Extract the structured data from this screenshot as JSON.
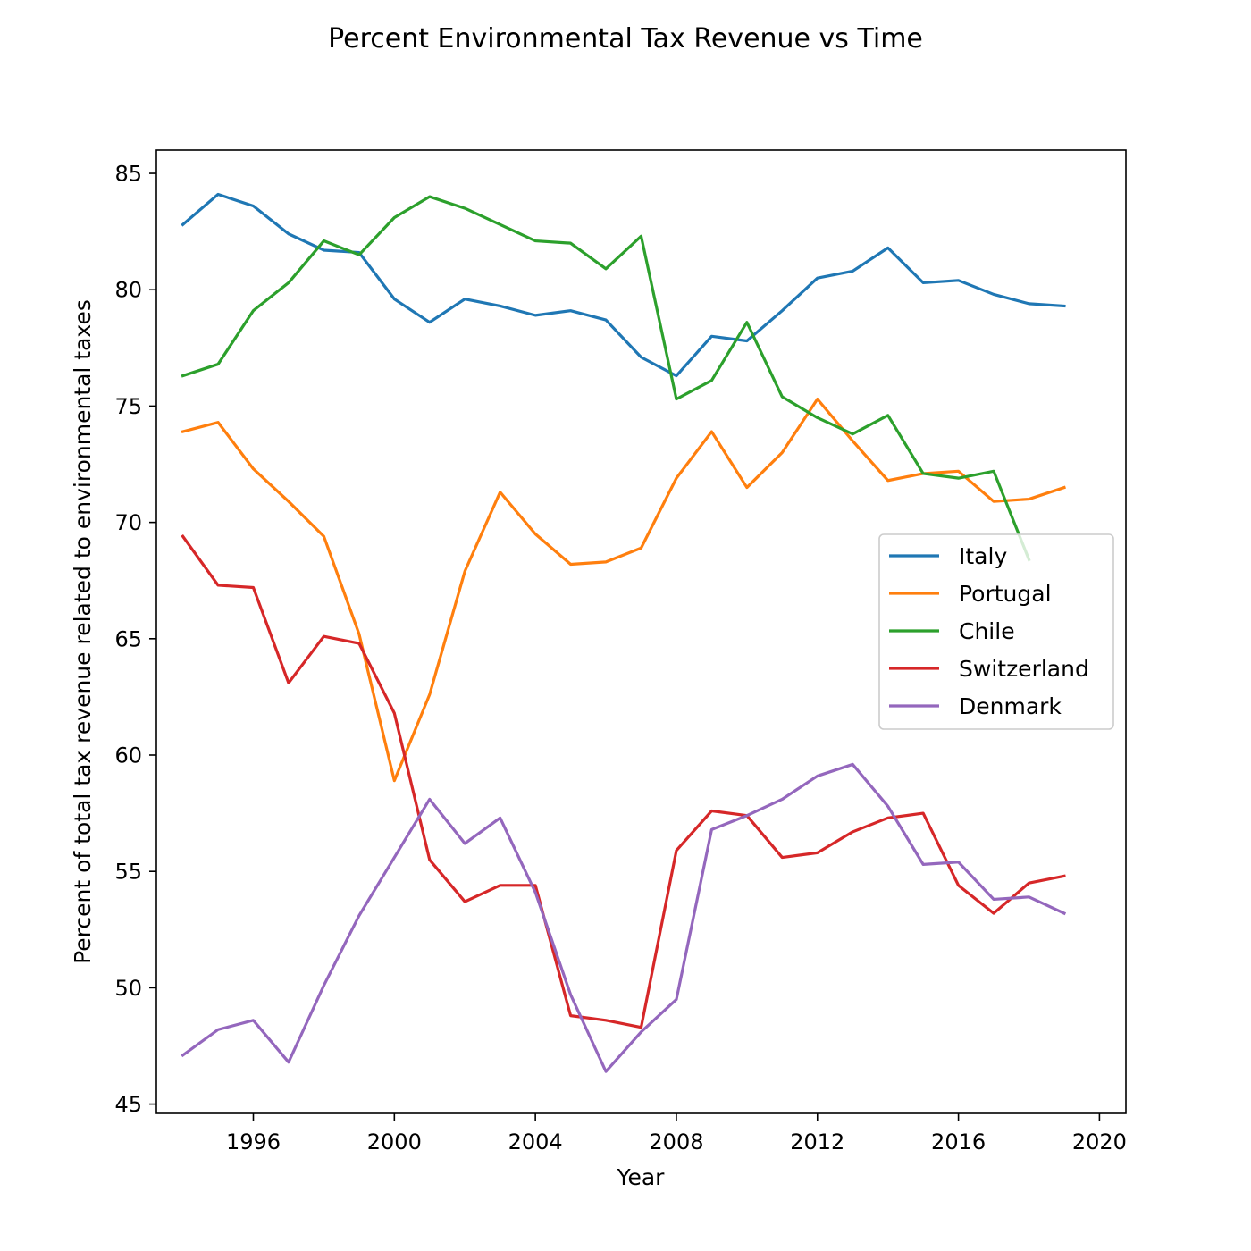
{
  "chart_data": {
    "type": "line",
    "title": "Percent Environmental Tax Revenue vs Time",
    "xlabel": "Year",
    "ylabel": "Percent of total tax revenue related to environmental taxes",
    "xlim": [
      1993.25,
      2020.75
    ],
    "ylim": [
      44.6,
      86.0
    ],
    "xticks": [
      1996,
      2000,
      2004,
      2008,
      2012,
      2016,
      2020
    ],
    "yticks": [
      45,
      50,
      55,
      60,
      65,
      70,
      75,
      80,
      85
    ],
    "grid": false,
    "legend_position": "center-right",
    "x": [
      1994,
      1995,
      1996,
      1997,
      1998,
      1999,
      2000,
      2001,
      2002,
      2003,
      2004,
      2005,
      2006,
      2007,
      2008,
      2009,
      2010,
      2011,
      2012,
      2013,
      2014,
      2015,
      2016,
      2017,
      2018,
      2019
    ],
    "series": [
      {
        "name": "Italy",
        "color": "#1f77b4",
        "values": [
          82.8,
          84.1,
          83.6,
          82.4,
          81.7,
          81.6,
          79.6,
          78.6,
          79.6,
          79.3,
          78.9,
          79.1,
          78.7,
          77.1,
          76.3,
          78.0,
          77.8,
          79.1,
          80.5,
          80.8,
          81.8,
          80.3,
          80.4,
          79.8,
          79.4,
          79.3
        ]
      },
      {
        "name": "Portugal",
        "color": "#ff7f0e",
        "values": [
          73.9,
          74.3,
          72.3,
          70.9,
          69.4,
          65.2,
          58.9,
          62.6,
          67.9,
          71.3,
          69.5,
          68.2,
          68.3,
          68.9,
          71.9,
          73.9,
          71.5,
          73.0,
          75.3,
          73.5,
          71.8,
          72.1,
          72.2,
          70.9,
          71.0,
          71.5
        ]
      },
      {
        "name": "Chile",
        "color": "#2ca02c",
        "values": [
          76.3,
          76.8,
          79.1,
          80.3,
          82.1,
          81.5,
          83.1,
          84.0,
          83.5,
          82.8,
          82.1,
          82.0,
          80.9,
          82.3,
          75.3,
          76.1,
          78.6,
          75.4,
          74.5,
          73.8,
          74.6,
          72.1,
          71.9,
          72.2,
          68.4,
          null
        ]
      },
      {
        "name": "Switzerland",
        "color": "#d62728",
        "values": [
          69.4,
          67.3,
          67.2,
          63.1,
          65.1,
          64.8,
          61.8,
          55.5,
          53.7,
          54.4,
          54.4,
          48.8,
          48.6,
          48.3,
          55.9,
          57.6,
          57.4,
          55.6,
          55.8,
          56.7,
          57.3,
          57.5,
          54.4,
          53.2,
          54.5,
          54.8
        ]
      },
      {
        "name": "Denmark",
        "color": "#9467bd",
        "values": [
          47.1,
          48.2,
          48.6,
          46.8,
          50.1,
          53.1,
          55.6,
          58.1,
          56.2,
          57.3,
          54.1,
          49.7,
          46.4,
          48.1,
          49.5,
          56.8,
          57.4,
          58.1,
          59.1,
          59.6,
          57.8,
          55.3,
          55.4,
          53.8,
          53.9,
          53.2
        ]
      }
    ]
  }
}
